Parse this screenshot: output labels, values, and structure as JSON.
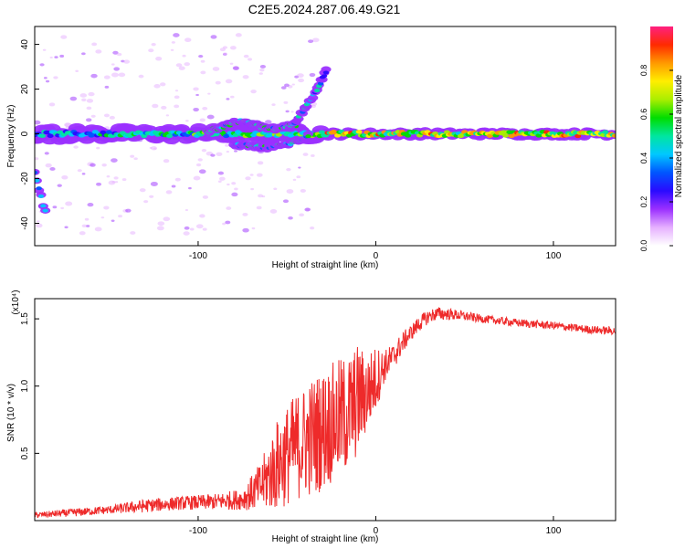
{
  "title": "C2E5.2024.287.06.49.G21",
  "colors": {
    "line": "#ee2a2a",
    "axis": "#000000",
    "colormap": [
      "#ffffff",
      "#e6b0ff",
      "#9b30ff",
      "#2a0aff",
      "#0055ff",
      "#00c8ff",
      "#00e6a0",
      "#00dd00",
      "#aaee00",
      "#ffee00",
      "#ff9900",
      "#ff2a00",
      "#ff2080"
    ]
  },
  "chart_data": [
    {
      "type": "heatmap",
      "title": "C2E5.2024.287.06.49.G21",
      "xlabel": "Height of straight line (km)",
      "ylabel": "Frequency (Hz)",
      "xlim": [
        -192,
        135
      ],
      "ylim": [
        -50,
        48
      ],
      "x_ticks": [
        -100,
        0,
        100
      ],
      "x_tick_labels": [
        "-100",
        "0",
        "100"
      ],
      "y_ticks": [
        -40,
        -20,
        0,
        20,
        40
      ],
      "y_tick_labels": [
        "-40",
        "-20",
        "0",
        "20",
        "40"
      ],
      "colorbar": {
        "label": "Normalized spectral amplitude",
        "range": [
          0,
          1
        ],
        "ticks": [
          0,
          0.2,
          0.4,
          0.6,
          0.8
        ],
        "tick_labels": [
          "0.0",
          "0.2",
          "0.4",
          "0.6",
          "0.8"
        ]
      },
      "features": {
        "main_band": {
          "frequency_hz": 0,
          "x_range": [
            -192,
            135
          ],
          "amplitude_left": 0.35,
          "amplitude_right": 0.75
        },
        "upper_branch": {
          "points": [
            [
              -95,
              1
            ],
            [
              -75,
              6
            ],
            [
              -60,
              2
            ],
            [
              -45,
              4
            ]
          ]
        },
        "lower_branch": {
          "points": [
            [
              -80,
              -5
            ],
            [
              -60,
              -6
            ],
            [
              -48,
              -4
            ],
            [
              -38,
              -1
            ]
          ]
        },
        "rising_streak": {
          "points": [
            [
              -48,
              3
            ],
            [
              -40,
              11
            ],
            [
              -33,
              20
            ],
            [
              -28,
              28
            ]
          ]
        },
        "left_edge_streak": {
          "points": [
            [
              -192,
              -18
            ],
            [
              -186,
              -35
            ]
          ]
        }
      }
    },
    {
      "type": "line",
      "xlabel": "Height of straight line (km)",
      "ylabel": "SNR (10 * v/v)",
      "y_scale_label": "(x10⁴)",
      "xlim": [
        -192,
        135
      ],
      "ylim": [
        0,
        1.65
      ],
      "x_ticks": [
        -100,
        0,
        100
      ],
      "x_tick_labels": [
        "-100",
        "0",
        "100"
      ],
      "y_ticks": [
        0.5,
        1.0,
        1.5
      ],
      "y_tick_labels": [
        "0.5",
        "1.0",
        "1.5"
      ],
      "series": [
        {
          "name": "SNR",
          "x": [
            -192,
            -170,
            -150,
            -130,
            -110,
            -90,
            -75,
            -65,
            -55,
            -45,
            -35,
            -25,
            -15,
            -10,
            -5,
            0,
            5,
            10,
            15,
            20,
            25,
            30,
            35,
            45,
            60,
            80,
            100,
            120,
            135
          ],
          "y": [
            0.04,
            0.06,
            0.08,
            0.11,
            0.13,
            0.14,
            0.16,
            0.25,
            0.42,
            0.55,
            0.63,
            0.72,
            0.8,
            0.9,
            0.95,
            1.05,
            1.15,
            1.22,
            1.32,
            1.4,
            1.47,
            1.52,
            1.54,
            1.53,
            1.5,
            1.47,
            1.45,
            1.42,
            1.41
          ],
          "amp": [
            0.02,
            0.03,
            0.03,
            0.05,
            0.05,
            0.06,
            0.08,
            0.18,
            0.35,
            0.4,
            0.45,
            0.45,
            0.45,
            0.42,
            0.3,
            0.25,
            0.12,
            0.1,
            0.08,
            0.06,
            0.06,
            0.05,
            0.05,
            0.04,
            0.03,
            0.03,
            0.03,
            0.03,
            0.03
          ]
        }
      ]
    }
  ]
}
